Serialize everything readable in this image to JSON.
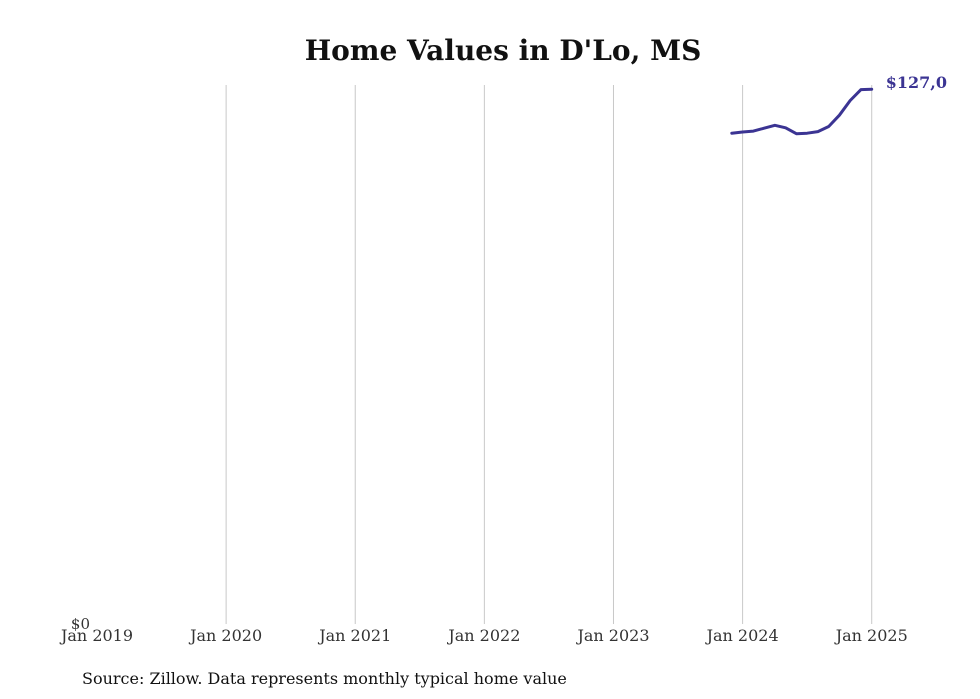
{
  "chart_data": {
    "type": "line",
    "title": "Home Values in D'Lo, MS",
    "source": "Source: Zillow. Data represents monthly typical home value",
    "x_tick_labels": [
      "Jan 2019",
      "Jan 2020",
      "Jan 2021",
      "Jan 2022",
      "Jan 2023",
      "Jan 2024",
      "Jan 2025"
    ],
    "x_range": [
      "2019-01",
      "2025-04"
    ],
    "y_tick_labels": [
      "$0"
    ],
    "ylim": [
      0,
      128000
    ],
    "grid": "vertical",
    "line_color": "#3b3493",
    "series": [
      {
        "end_label": "$127,0",
        "points": [
          {
            "x": "2023-12",
            "y": 116500
          },
          {
            "x": "2024-01",
            "y": 116800
          },
          {
            "x": "2024-02",
            "y": 117000
          },
          {
            "x": "2024-03",
            "y": 117700
          },
          {
            "x": "2024-04",
            "y": 118400
          },
          {
            "x": "2024-05",
            "y": 117800
          },
          {
            "x": "2024-06",
            "y": 116400
          },
          {
            "x": "2024-07",
            "y": 116500
          },
          {
            "x": "2024-08",
            "y": 116900
          },
          {
            "x": "2024-09",
            "y": 118100
          },
          {
            "x": "2024-10",
            "y": 120800
          },
          {
            "x": "2024-11",
            "y": 124300
          },
          {
            "x": "2024-12",
            "y": 126900
          },
          {
            "x": "2025-01",
            "y": 127000
          }
        ]
      }
    ]
  }
}
